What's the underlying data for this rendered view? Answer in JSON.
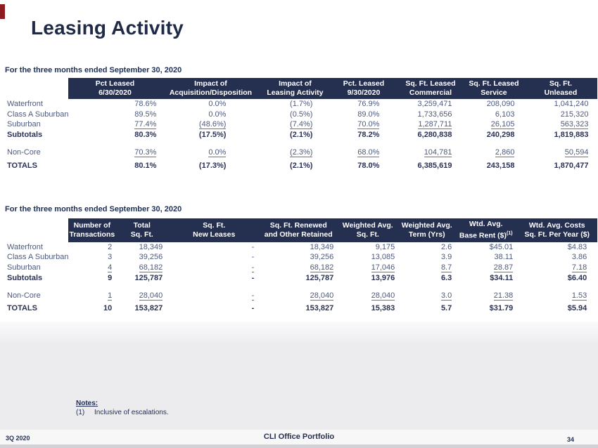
{
  "page": {
    "title": "Leasing Activity",
    "footer": {
      "left": "3Q 2020",
      "center": "CLI Office Portfolio",
      "page_number": "34"
    },
    "notes": {
      "heading": "Notes:",
      "items": [
        {
          "num": "(1)",
          "text": "Inclusive of escalations."
        }
      ]
    }
  },
  "colors": {
    "navy_header": "#252F50",
    "accent_red": "#8E1B22",
    "body_text": "#4D5A7D",
    "bold_text": "#2B3254"
  },
  "tables": [
    {
      "caption": "For the three months ended September 30, 2020",
      "headers": [
        {
          "l1": "",
          "l2": ""
        },
        {
          "l1": "Pct Leased",
          "l2": "6/30/2020"
        },
        {
          "l1": "Impact of",
          "l2": "Acquisition/Disposition"
        },
        {
          "l1": "Impact of",
          "l2": "Leasing Activity"
        },
        {
          "l1": "Pct. Leased",
          "l2": "9/30/2020"
        },
        {
          "l1": "Sq. Ft. Leased",
          "l2": "Commercial"
        },
        {
          "l1": "Sq. Ft. Leased",
          "l2": "Service"
        },
        {
          "l1": "Sq. Ft.",
          "l2": "Unleased"
        }
      ],
      "rows": [
        {
          "label": "Waterfront",
          "style": "",
          "values": [
            "78.6%",
            "0.0%",
            "(1.7%)",
            "76.9%",
            "3,259,471",
            "208,090",
            "1,041,240"
          ]
        },
        {
          "label": "Class A Suburban",
          "style": "",
          "values": [
            "89.5%",
            "0.0%",
            "(0.5%)",
            "89.0%",
            "1,733,656",
            "6,103",
            "215,320"
          ]
        },
        {
          "label": "Suburban",
          "style": "u",
          "values": [
            "77.4%",
            "(48.6%)",
            "(7.4%)",
            "70.0%",
            "1,287,711",
            "26,105",
            "563,323"
          ]
        },
        {
          "label": "Subtotals",
          "style": "b",
          "values": [
            "80.3%",
            "(17.5%)",
            "(2.1%)",
            "78.2%",
            "6,280,838",
            "240,298",
            "1,819,883"
          ]
        },
        {
          "label": "Non-Core",
          "style": "u gap",
          "values": [
            "70.3%",
            "0.0%",
            "(2.3%)",
            "68.0%",
            "104,781",
            "2,860",
            "50,594"
          ]
        },
        {
          "label": "TOTALS",
          "style": "b",
          "values": [
            "80.1%",
            "(17.3%)",
            "(2.1%)",
            "78.0%",
            "6,385,619",
            "243,158",
            "1,870,477"
          ]
        }
      ]
    },
    {
      "caption": "For the three months ended September 30, 2020",
      "headers": [
        {
          "l1": "",
          "l2": ""
        },
        {
          "l1": "Number of",
          "l2": "Transactions"
        },
        {
          "l1": "Total",
          "l2": "Sq. Ft."
        },
        {
          "l1": "Sq. Ft.",
          "l2": "New Leases"
        },
        {
          "l1": "Sq. Ft. Renewed",
          "l2": "and Other Retained"
        },
        {
          "l1": "Weighted Avg.",
          "l2": "Sq. Ft."
        },
        {
          "l1": "Weighted Avg.",
          "l2": "Term (Yrs)"
        },
        {
          "l1": "Wtd. Avg.",
          "l2": "Base Rent ($)",
          "sup": "(1)"
        },
        {
          "l1": "Wtd. Avg. Costs",
          "l2": "Sq. Ft. Per Year ($)"
        }
      ],
      "rows": [
        {
          "label": "Waterfront",
          "style": "",
          "values": [
            "2",
            "18,349",
            "-",
            "18,349",
            "9,175",
            "2.6",
            "$45.01",
            "$4.83"
          ]
        },
        {
          "label": "Class A Suburban",
          "style": "",
          "values": [
            "3",
            "39,256",
            "-",
            "39,256",
            "13,085",
            "3.9",
            "38.11",
            "3.86"
          ]
        },
        {
          "label": "Suburban",
          "style": "u",
          "values": [
            "4",
            "68,182",
            "-",
            "68,182",
            "17,046",
            "8.7",
            "28.87",
            "7.18"
          ]
        },
        {
          "label": "Subtotals",
          "style": "b",
          "values": [
            "9",
            "125,787",
            "-",
            "125,787",
            "13,976",
            "6.3",
            "$34.11",
            "$6.40"
          ]
        },
        {
          "label": "Non-Core",
          "style": "u gap",
          "values": [
            "1",
            "28,040",
            "-",
            "28,040",
            "28,040",
            "3.0",
            "21.38",
            "1.53"
          ]
        },
        {
          "label": "TOTALS",
          "style": "b",
          "values": [
            "10",
            "153,827",
            "-",
            "153,827",
            "15,383",
            "5.7",
            "$31.79",
            "$5.94"
          ]
        }
      ]
    }
  ]
}
